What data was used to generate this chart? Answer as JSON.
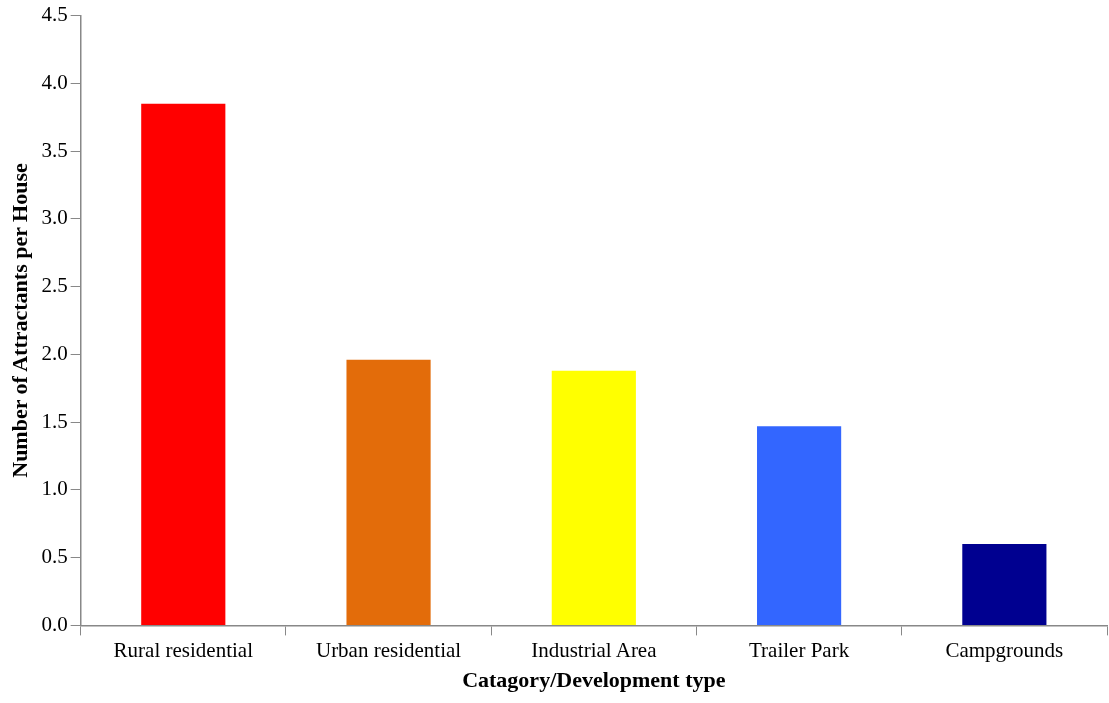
{
  "chart_data": {
    "type": "bar",
    "xlabel": "Catagory/Development type",
    "ylabel": "Number of Attractants per House",
    "categories": [
      "Rural residential",
      "Urban residential",
      "Industrial Area",
      "Trailer Park",
      "Campgrounds"
    ],
    "values": [
      3.85,
      1.96,
      1.88,
      1.47,
      0.6
    ],
    "colors": [
      "#ff0000",
      "#e36c0a",
      "#ffff00",
      "#3366ff",
      "#000090"
    ],
    "ylim": [
      0,
      4.5
    ],
    "yticks": [
      {
        "value": 0,
        "label": "0.0"
      },
      {
        "value": 0.5,
        "label": "0.5"
      },
      {
        "value": 1,
        "label": "1.0"
      },
      {
        "value": 1.5,
        "label": "1.5"
      },
      {
        "value": 2,
        "label": "2.0"
      },
      {
        "value": 2.5,
        "label": "2.5"
      },
      {
        "value": 3,
        "label": "3.0"
      },
      {
        "value": 3.5,
        "label": "3.5"
      },
      {
        "value": 4,
        "label": "4.0"
      },
      {
        "value": 4.5,
        "label": "4.5"
      }
    ],
    "grid": false,
    "legend": false
  }
}
